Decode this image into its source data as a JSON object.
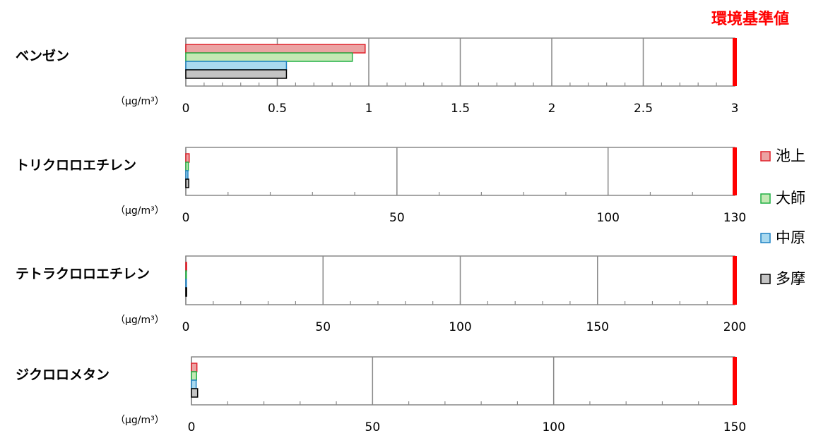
{
  "standard_label": "環境基準値",
  "chart_data": [
    {
      "type": "hbar",
      "title": "ベンゼン",
      "unit_label": "（μg/m³）",
      "xlim": [
        0,
        3
      ],
      "xticks": [
        0,
        0.5,
        1,
        1.5,
        2,
        2.5,
        3
      ],
      "minor_tick_step": 0.1,
      "standard": 3,
      "standard_color": "#ff0000",
      "grid": true,
      "series": [
        {
          "name": "池上",
          "color": "#eba3a3",
          "edgecolor": "#e0202a",
          "values": [
            0.98
          ]
        },
        {
          "name": "大師",
          "color": "#c4e8b4",
          "edgecolor": "#22b045",
          "values": [
            0.91
          ]
        },
        {
          "name": "中原",
          "color": "#a9d9ef",
          "edgecolor": "#1f82c4",
          "values": [
            0.55
          ]
        },
        {
          "name": "多摩",
          "color": "#c4c4c4",
          "edgecolor": "#000000",
          "values": [
            0.55
          ]
        }
      ]
    },
    {
      "type": "hbar",
      "title": "トリクロロエチレン",
      "unit_label": "（μg/m³）",
      "xlim": [
        0,
        130
      ],
      "xticks": [
        0,
        50,
        100,
        130
      ],
      "minor_tick_step": 10,
      "standard": 130,
      "standard_color": "#ff0000",
      "grid": true,
      "series": [
        {
          "name": "池上",
          "color": "#eba3a3",
          "edgecolor": "#e0202a",
          "values": [
            0.8
          ]
        },
        {
          "name": "大師",
          "color": "#c4e8b4",
          "edgecolor": "#22b045",
          "values": [
            0.6
          ]
        },
        {
          "name": "中原",
          "color": "#a9d9ef",
          "edgecolor": "#1f82c4",
          "values": [
            0.5
          ]
        },
        {
          "name": "多摩",
          "color": "#c4c4c4",
          "edgecolor": "#000000",
          "values": [
            0.7
          ]
        }
      ]
    },
    {
      "type": "hbar",
      "title": "テトラクロロエチレン",
      "unit_label": "（μg/m³）",
      "xlim": [
        0,
        200
      ],
      "xticks": [
        0,
        50,
        100,
        150,
        200
      ],
      "minor_tick_step": 10,
      "standard": 200,
      "standard_color": "#ff0000",
      "grid": true,
      "series": [
        {
          "name": "池上",
          "color": "#eba3a3",
          "edgecolor": "#e0202a",
          "values": [
            0.3
          ]
        },
        {
          "name": "大師",
          "color": "#c4e8b4",
          "edgecolor": "#22b045",
          "values": [
            0.2
          ]
        },
        {
          "name": "中原",
          "color": "#a9d9ef",
          "edgecolor": "#1f82c4",
          "values": [
            0.2
          ]
        },
        {
          "name": "多摩",
          "color": "#c4c4c4",
          "edgecolor": "#000000",
          "values": [
            0.3
          ]
        }
      ]
    },
    {
      "type": "hbar",
      "title": "ジクロロメタン",
      "unit_label": "（μg/m³）",
      "xlim": [
        0,
        150
      ],
      "xticks": [
        0,
        50,
        100,
        150
      ],
      "minor_tick_step": 10,
      "standard": 150,
      "standard_color": "#ff0000",
      "grid": true,
      "series": [
        {
          "name": "池上",
          "color": "#eba3a3",
          "edgecolor": "#e0202a",
          "values": [
            1.5
          ]
        },
        {
          "name": "大師",
          "color": "#c4e8b4",
          "edgecolor": "#22b045",
          "values": [
            1.4
          ]
        },
        {
          "name": "中原",
          "color": "#a9d9ef",
          "edgecolor": "#1f82c4",
          "values": [
            1.3
          ]
        },
        {
          "name": "多摩",
          "color": "#c4c4c4",
          "edgecolor": "#000000",
          "values": [
            1.7
          ]
        }
      ]
    }
  ]
}
